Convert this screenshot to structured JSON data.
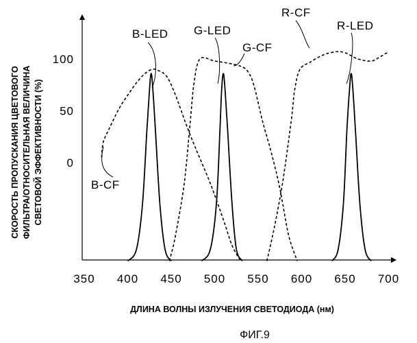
{
  "chart_data": {
    "type": "line",
    "xlabel": "ДЛИНА ВОЛНЫ ИЗЛУЧЕНИЯ СВЕТОДИОДА (нм)",
    "ylabel_lines": [
      "СКОРОСТЬ ПРОПУСКАНИЯ ЦВЕТОВОГО",
      "ФИЛЬТРА/ОТНОСИТЕЛЬНАЯ ВЕЛИЧИНА",
      "СВЕТОВОЙ ЭФФЕКТИВНОСТИ (%)"
    ],
    "caption": "ФИГ.9",
    "x_ticks": [
      "350",
      "400",
      "450",
      "500",
      "550",
      "600",
      "650",
      "700"
    ],
    "y_ticks": [
      "0",
      "50",
      "100"
    ],
    "xlim": [
      350,
      705
    ],
    "grid": false,
    "series": [
      {
        "name": "B-LED",
        "style": "solid",
        "points": [
          [
            400,
            -95
          ],
          [
            410,
            -84
          ],
          [
            417,
            -40
          ],
          [
            422,
            30
          ],
          [
            425,
            70
          ],
          [
            427,
            86
          ],
          [
            429,
            70
          ],
          [
            432,
            30
          ],
          [
            437,
            -40
          ],
          [
            443,
            -84
          ],
          [
            450,
            -95
          ]
        ]
      },
      {
        "name": "G-LED",
        "style": "solid",
        "points": [
          [
            485,
            -95
          ],
          [
            495,
            -84
          ],
          [
            502,
            -40
          ],
          [
            506,
            30
          ],
          [
            508,
            70
          ],
          [
            510,
            86
          ],
          [
            512,
            70
          ],
          [
            515,
            30
          ],
          [
            520,
            -40
          ],
          [
            525,
            -84
          ],
          [
            532,
            -95
          ]
        ]
      },
      {
        "name": "R-LED",
        "style": "solid",
        "points": [
          [
            635,
            -95
          ],
          [
            642,
            -84
          ],
          [
            648,
            -40
          ],
          [
            652,
            30
          ],
          [
            655,
            70
          ],
          [
            657,
            86
          ],
          [
            659,
            70
          ],
          [
            662,
            30
          ],
          [
            667,
            -40
          ],
          [
            673,
            -84
          ],
          [
            680,
            -95
          ]
        ]
      },
      {
        "name": "B-CF",
        "style": "dashed",
        "points": [
          [
            370,
            5
          ],
          [
            372,
            20
          ],
          [
            380,
            35
          ],
          [
            390,
            52
          ],
          [
            400,
            65
          ],
          [
            410,
            77
          ],
          [
            420,
            86
          ],
          [
            428,
            90
          ],
          [
            435,
            89
          ],
          [
            445,
            83
          ],
          [
            455,
            65
          ],
          [
            468,
            35
          ],
          [
            480,
            10
          ],
          [
            495,
            -20
          ],
          [
            510,
            -55
          ],
          [
            520,
            -80
          ],
          [
            530,
            -95
          ]
        ]
      },
      {
        "name": "G-CF",
        "style": "dashed",
        "points": [
          [
            448,
            -95
          ],
          [
            455,
            -70
          ],
          [
            465,
            -20
          ],
          [
            472,
            40
          ],
          [
            476,
            75
          ],
          [
            483,
            100
          ],
          [
            500,
            98
          ],
          [
            515,
            96
          ],
          [
            530,
            93
          ],
          [
            538,
            88
          ],
          [
            545,
            75
          ],
          [
            555,
            40
          ],
          [
            565,
            10
          ],
          [
            575,
            -25
          ],
          [
            585,
            -70
          ],
          [
            595,
            -95
          ]
        ]
      },
      {
        "name": "R-CF",
        "style": "dashed",
        "points": [
          [
            560,
            -95
          ],
          [
            568,
            -65
          ],
          [
            578,
            -20
          ],
          [
            588,
            40
          ],
          [
            592,
            70
          ],
          [
            598,
            90
          ],
          [
            610,
            97
          ],
          [
            625,
            104
          ],
          [
            640,
            107
          ],
          [
            650,
            106
          ],
          [
            665,
            100
          ],
          [
            680,
            98
          ],
          [
            690,
            102
          ],
          [
            700,
            107
          ]
        ]
      }
    ]
  },
  "annotations": {
    "b_led": "B-LED",
    "g_led": "G-LED",
    "r_led": "R-LED",
    "b_cf": "B-CF",
    "g_cf": "G-CF",
    "r_cf": "R-CF"
  }
}
